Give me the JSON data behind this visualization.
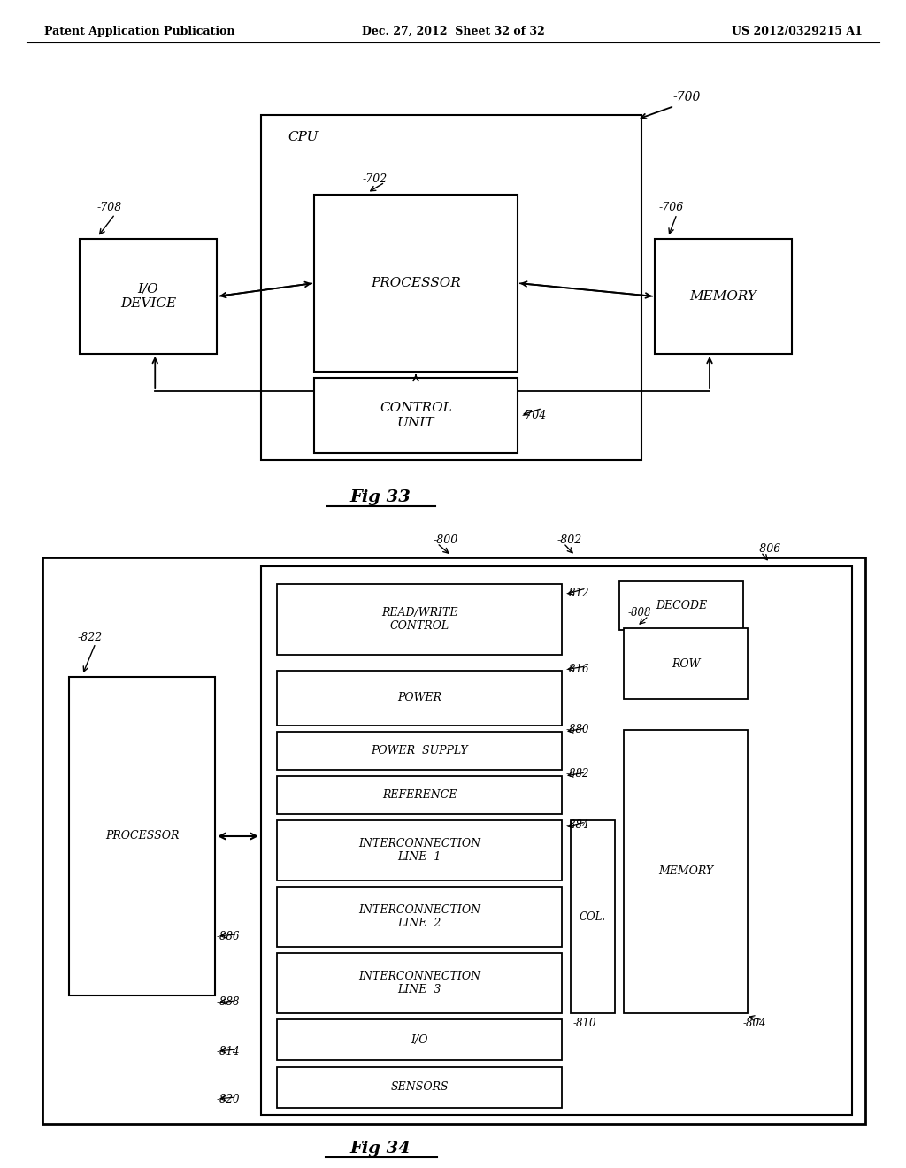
{
  "bg_color": "#ffffff",
  "header_left": "Patent Application Publication",
  "header_mid": "Dec. 27, 2012  Sheet 32 of 32",
  "header_right": "US 2012/0329215 A1"
}
